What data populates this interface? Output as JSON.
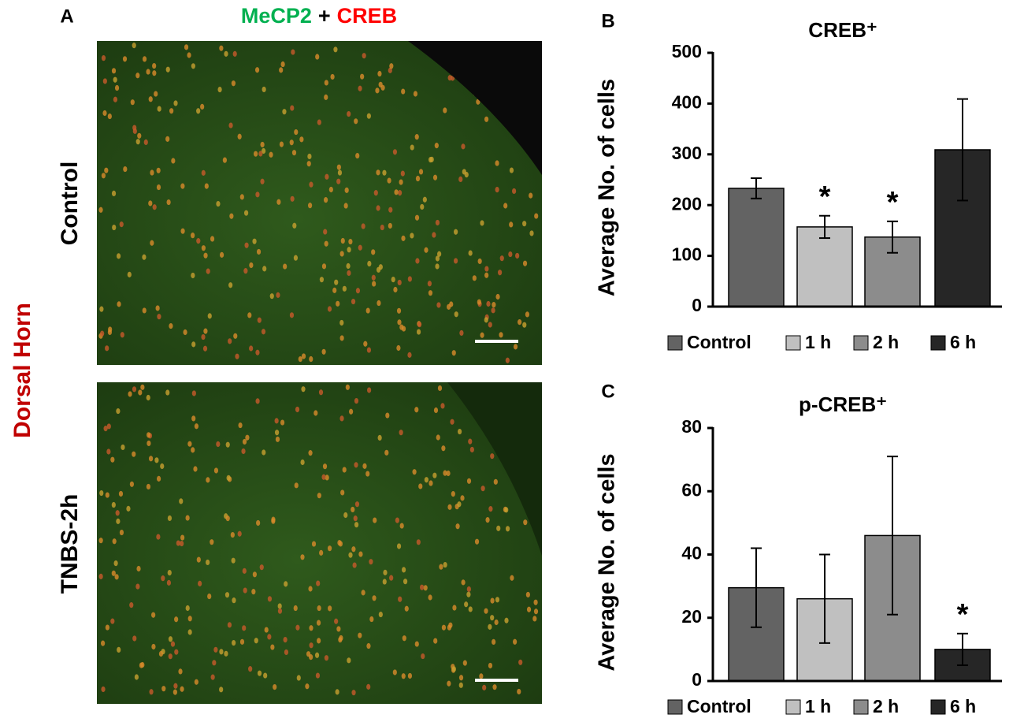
{
  "figure": {
    "panel_labels": [
      "A",
      "B",
      "C"
    ],
    "image_title": [
      {
        "text": "MeCP2",
        "color": "#00b050"
      },
      {
        "text": "+",
        "color": "#000000"
      },
      {
        "text": "CREB",
        "color": "#ff0000"
      }
    ],
    "region_label": {
      "text": "Dorsal Horn",
      "color": "#c00000"
    },
    "row_labels": [
      "Control",
      "TNBS-2h"
    ]
  },
  "chart_data": [
    {
      "type": "bar",
      "title": "CREB⁺",
      "y_label": "Average No. of cells",
      "categories": [
        "Control",
        "1 h",
        "2 h",
        "6 h"
      ],
      "values": [
        233,
        157,
        137,
        309
      ],
      "errors": [
        20,
        22,
        31,
        100
      ],
      "significance": [
        null,
        "*",
        "*",
        null
      ],
      "colors": [
        "#636363",
        "#c0c0c0",
        "#8c8c8c",
        "#262626"
      ],
      "ylim": [
        0,
        500
      ],
      "yticks": [
        0,
        100,
        200,
        300,
        400,
        500
      ]
    },
    {
      "type": "bar",
      "title": "p-CREB⁺",
      "y_label": "Average No. of cells",
      "categories": [
        "Control",
        "1 h",
        "2 h",
        "6 h"
      ],
      "values": [
        29.5,
        26,
        46,
        10
      ],
      "errors": [
        12.5,
        14,
        25,
        5
      ],
      "significance": [
        null,
        null,
        null,
        "*"
      ],
      "colors": [
        "#636363",
        "#c0c0c0",
        "#8c8c8c",
        "#262626"
      ],
      "ylim": [
        0,
        80
      ],
      "yticks": [
        0,
        20,
        40,
        60,
        80
      ]
    }
  ]
}
